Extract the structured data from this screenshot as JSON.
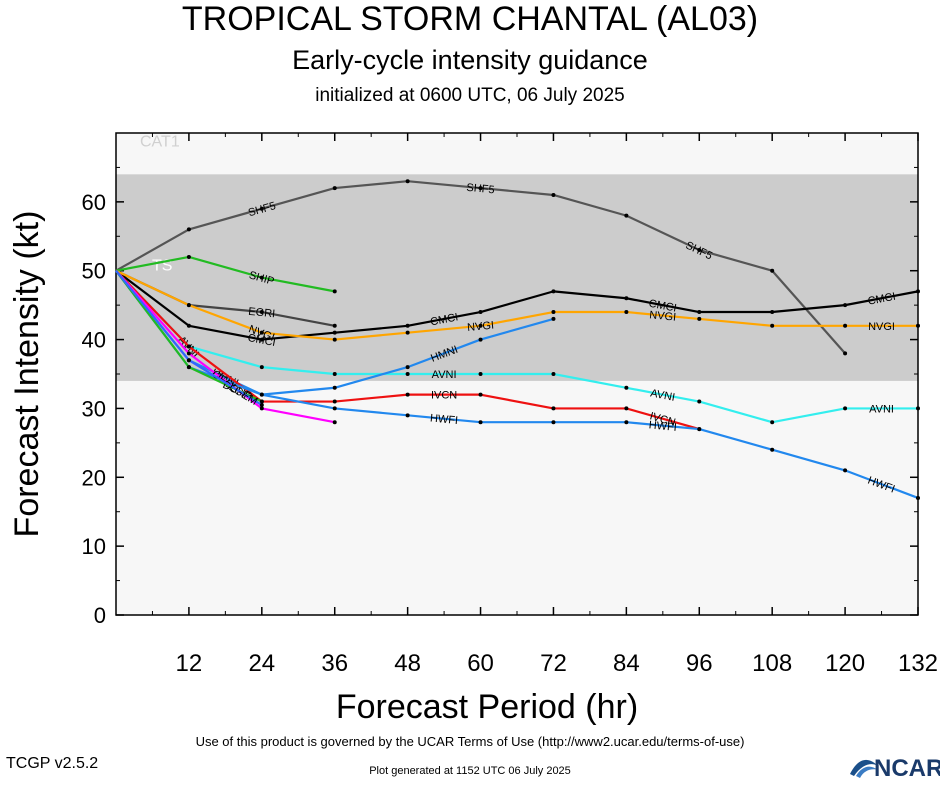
{
  "header": {
    "title": "TROPICAL STORM CHANTAL (AL03)",
    "subtitle": "Early-cycle intensity guidance",
    "initialized": "initialized at 0600 UTC, 06 July 2025"
  },
  "footer": {
    "terms": "Use of this product is governed by the UCAR Terms of Use (http://www2.ucar.edu/terms-of-use)",
    "version": "TCGP v2.5.2",
    "generated": "Plot generated at 1152 UTC   06 July 2025",
    "logo_text": "NCAR"
  },
  "chart_data": {
    "type": "line",
    "xlabel": "Forecast Period (hr)",
    "ylabel": "Forecast Intensity (kt)",
    "xlim": [
      0,
      132
    ],
    "ylim": [
      0,
      70
    ],
    "xticks": [
      12,
      24,
      36,
      48,
      60,
      72,
      84,
      96,
      108,
      120,
      132
    ],
    "yticks": [
      0,
      10,
      20,
      30,
      40,
      50,
      60
    ],
    "bands": [
      {
        "label": "CAT1",
        "from": 64,
        "to": 70,
        "color": "#f7f7f7"
      },
      {
        "label": "TS",
        "from": 34,
        "to": 64,
        "color": "#cccccc"
      }
    ],
    "series": [
      {
        "name": "SHF5",
        "color": "#555555",
        "x": [
          0,
          12,
          24,
          36,
          48,
          60,
          72,
          84,
          96,
          108,
          120
        ],
        "y": [
          50,
          56,
          59,
          62,
          63,
          62,
          61,
          58,
          53,
          50,
          38
        ],
        "labels_at": [
          24,
          60,
          96
        ]
      },
      {
        "name": "SHIP",
        "color": "#22bb22",
        "x": [
          0,
          12,
          24,
          36
        ],
        "y": [
          50,
          52,
          49,
          47
        ],
        "labels_at": [
          24
        ]
      },
      {
        "name": "EGRI",
        "color": "#444444",
        "x": [
          0,
          12,
          24,
          36
        ],
        "y": [
          50,
          45,
          44,
          42
        ],
        "labels_at": [
          24
        ]
      },
      {
        "name": "CMCI",
        "color": "#000000",
        "x": [
          0,
          12,
          24,
          36,
          48,
          60,
          72,
          84,
          96,
          108,
          120,
          132
        ],
        "y": [
          50,
          42,
          40,
          41,
          42,
          44,
          47,
          46,
          44,
          44,
          45,
          47
        ],
        "labels_at": [
          24,
          54,
          90,
          126
        ]
      },
      {
        "name": "NVGI",
        "color": "#ffa500",
        "x": [
          0,
          12,
          24,
          36,
          48,
          60,
          72,
          84,
          96,
          108,
          120,
          132
        ],
        "y": [
          50,
          45,
          41,
          40,
          41,
          42,
          44,
          44,
          43,
          42,
          42,
          42
        ],
        "labels_at": [
          24,
          60,
          90,
          126
        ]
      },
      {
        "name": "AVNI",
        "color": "#33eeee",
        "x": [
          0,
          12,
          24,
          36,
          48,
          60,
          72,
          84,
          96,
          108,
          120,
          132
        ],
        "y": [
          50,
          39,
          36,
          35,
          35,
          35,
          35,
          33,
          31,
          28,
          30,
          30
        ],
        "labels_at": [
          12,
          54,
          90,
          126
        ]
      },
      {
        "name": "HMNI",
        "color": "#2288ee",
        "x": [
          0,
          12,
          24,
          36,
          48,
          60,
          72
        ],
        "y": [
          50,
          37,
          32,
          33,
          36,
          40,
          43
        ],
        "labels_at": [
          18,
          54
        ]
      },
      {
        "name": "IVCN",
        "color": "#ee1111",
        "x": [
          0,
          12,
          24,
          36,
          48,
          60,
          72,
          84,
          96
        ],
        "y": [
          50,
          39,
          31,
          31,
          32,
          32,
          30,
          30,
          27
        ],
        "labels_at": [
          54,
          90
        ]
      },
      {
        "name": "HWFI",
        "color": "#2288ee",
        "x": [
          0,
          12,
          24,
          36,
          48,
          60,
          72,
          84,
          96,
          108,
          120,
          132
        ],
        "y": [
          50,
          36,
          32,
          30,
          29,
          28,
          28,
          28,
          27,
          24,
          21,
          17
        ],
        "labels_at": [
          54,
          90,
          126
        ]
      },
      {
        "name": "OFCL",
        "color": "#ff00ff",
        "x": [
          0,
          12,
          24,
          36
        ],
        "y": [
          50,
          38,
          30,
          28
        ],
        "labels_at": [
          18
        ]
      },
      {
        "name": "DSHP",
        "color": "#22bb22",
        "x": [
          0,
          12,
          24
        ],
        "y": [
          50,
          36,
          31
        ],
        "labels_at": [
          20
        ]
      },
      {
        "name": "LGEM",
        "color": "#3366ff",
        "x": [
          0,
          12,
          24
        ],
        "y": [
          50,
          37,
          30.5
        ],
        "labels_at": [
          21
        ]
      }
    ]
  }
}
